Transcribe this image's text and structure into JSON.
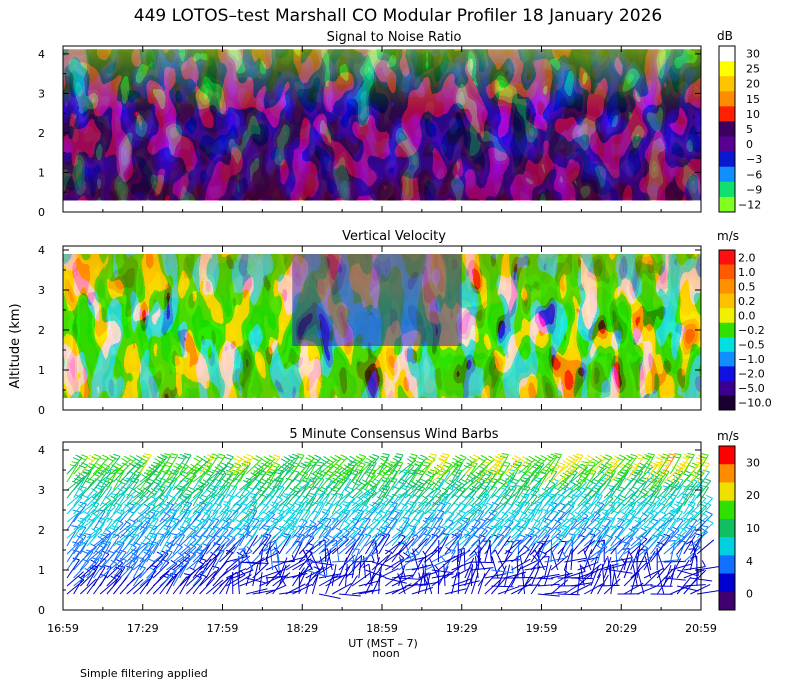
{
  "title": "449 LOTOS–test Marshall CO Modular Profiler 18 January 2026",
  "footnote": "Simple filtering applied",
  "x_axis": {
    "ticks": [
      "16:59",
      "17:29",
      "17:59",
      "18:29",
      "18:59",
      "19:29",
      "19:59",
      "20:29",
      "20:59"
    ],
    "label": "UT  (MST – 7)",
    "marker_label": "noon",
    "marker_tick": "18:59"
  },
  "y_axis": {
    "label": "Altitude (km)",
    "ticks": [
      "0",
      "1",
      "2",
      "3",
      "4"
    ]
  },
  "chart_data": [
    {
      "type": "heatmap",
      "title": "Signal to Noise Ratio",
      "unit": "dB",
      "y_range_km": [
        0,
        4.2
      ],
      "data_range_km": [
        0.3,
        4.1
      ],
      "colorbar_labels": [
        "30",
        "25",
        "20",
        "15",
        "10",
        "5",
        "0",
        "−3",
        "−6",
        "−9",
        "−12"
      ],
      "colorbar_colors": [
        "#ffffff",
        "#ffff00",
        "#ffc400",
        "#ff8c00",
        "#ff2000",
        "#3c0060",
        "#5a0090",
        "#0a18d0",
        "#1090ff",
        "#10e070",
        "#80ff20"
      ],
      "typical_profile_db": {
        "1.0": 0,
        "2.0": -3,
        "3.0": -6,
        "3.8": -12
      }
    },
    {
      "type": "heatmap",
      "title": "Vertical Velocity",
      "unit": "m/s",
      "y_range_km": [
        0,
        4.1
      ],
      "data_range_km": [
        0.3,
        3.9
      ],
      "colorbar_labels": [
        "2.0",
        "1.0",
        "0.5",
        "0.2",
        "0.0",
        "−0.2",
        "−0.5",
        "−1.0",
        "−2.0",
        "−5.0",
        "−10.0"
      ],
      "colorbar_colors": [
        "#ff1010",
        "#ff5a00",
        "#ff9000",
        "#ffc000",
        "#f0f000",
        "#30e000",
        "#00e0e0",
        "#1090ff",
        "#1010e0",
        "#3c0090",
        "#1a0030"
      ],
      "notable_period": {
        "from": "18:29",
        "to": "19:29",
        "value": "−1.0"
      }
    },
    {
      "type": "wind_barbs",
      "title": "5 Minute Consensus Wind Barbs",
      "unit": "m/s",
      "y_range_km": [
        0,
        4.2
      ],
      "colorbar_labels": [
        "30",
        "20",
        "10",
        "4",
        "0"
      ],
      "colorbar_colors": [
        "#ff0000",
        "#ff8c00",
        "#f0e000",
        "#30e000",
        "#10c060",
        "#00d0e0",
        "#1070ff",
        "#0000d0",
        "#400070"
      ],
      "height_levels_km": [
        0.4,
        0.6,
        0.8,
        1.0,
        1.2,
        1.4,
        1.6,
        1.8,
        2.0,
        2.2,
        2.4,
        2.6,
        2.8,
        3.0,
        3.2,
        3.4,
        3.6,
        3.8,
        4.0
      ],
      "typical_speed_ms": {
        "0.5": 5,
        "1.5": 9,
        "2.5": 13,
        "3.5": 20,
        "4.0": 24
      }
    }
  ]
}
